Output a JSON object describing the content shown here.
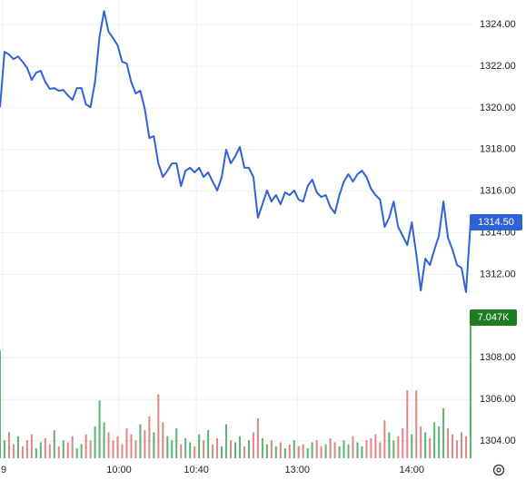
{
  "chart_data": {
    "type": "line",
    "color": "#2f62d9",
    "values": [
      1320.03,
      1322.69,
      1322.56,
      1322.34,
      1322.47,
      1322.21,
      1321.91,
      1321.34,
      1321.69,
      1321.78,
      1321.25,
      1320.91,
      1320.95,
      1320.82,
      1320.86,
      1320.6,
      1320.38,
      1320.95,
      1320.95,
      1320.17,
      1320.03,
      1321.25,
      1323.43,
      1324.65,
      1323.65,
      1323.35,
      1323,
      1322.21,
      1322.13,
      1321.25,
      1320.69,
      1320.82,
      1319.95,
      1318.55,
      1318.64,
      1317.33,
      1316.68,
      1316.98,
      1317.33,
      1317.33,
      1316.24,
      1316.98,
      1317.12,
      1316.9,
      1317.12,
      1316.68,
      1316.9,
      1316.46,
      1316.03,
      1316.68,
      1317.99,
      1317.33,
      1317.68,
      1318.12,
      1317.12,
      1317.12,
      1316.68,
      1314.72,
      1315.37,
      1316.03,
      1315.5,
      1315.81,
      1315.37,
      1315.94,
      1315.81,
      1316.03,
      1315.59,
      1315.5,
      1316.24,
      1316.55,
      1315.94,
      1315.72,
      1315.81,
      1315.24,
      1314.94,
      1315.81,
      1316.46,
      1316.81,
      1316.46,
      1316.81,
      1316.98,
      1316.68,
      1316.11,
      1315.81,
      1315.59,
      1314.28,
      1314.72,
      1315.5,
      1314.28,
      1313.85,
      1313.41,
      1314.5,
      1312.98,
      1311.23,
      1312.76,
      1312.45,
      1313.19,
      1313.85,
      1315.5,
      1313.76,
      1313.19,
      1312.45,
      1312.32,
      1311.15,
      1314.5
    ],
    "last_value_label": "1314.50",
    "xlim": [
      0,
      104
    ],
    "xticks": [
      {
        "value": 0.6,
        "label": "9"
      },
      {
        "value": 26.3,
        "label": "10:00"
      },
      {
        "value": 43.4,
        "label": "10:40"
      },
      {
        "value": 65.7,
        "label": "13:00"
      },
      {
        "value": 91,
        "label": "14:00"
      }
    ],
    "ylim": [
      1303.17,
      1325.18
    ],
    "yticks": [
      {
        "value": 1304,
        "label": "1304.00"
      },
      {
        "value": 1306,
        "label": "1306.00"
      },
      {
        "value": 1308,
        "label": "1308.00"
      },
      {
        "value": 1312,
        "label": "1312.00"
      },
      {
        "value": 1314,
        "label": "1314.00"
      },
      {
        "value": 1316,
        "label": "1316.00"
      },
      {
        "value": 1318,
        "label": "1318.00"
      },
      {
        "value": 1320,
        "label": "1320.00"
      },
      {
        "value": 1322,
        "label": "1322.00"
      },
      {
        "value": 1324,
        "label": "1324.00"
      }
    ],
    "grid": true,
    "volume": {
      "values": [
        5400,
        900,
        1300,
        700,
        1100,
        600,
        900,
        1200,
        500,
        800,
        1000,
        700,
        1400,
        600,
        900,
        800,
        1100,
        500,
        700,
        1200,
        900,
        1600,
        2900,
        1800,
        1300,
        900,
        1100,
        700,
        1500,
        1200,
        900,
        1700,
        1400,
        2100,
        1300,
        3200,
        1800,
        1100,
        900,
        1500,
        700,
        1000,
        800,
        600,
        1200,
        900,
        1400,
        700,
        1000,
        600,
        1700,
        900,
        800,
        1100,
        600,
        900,
        1300,
        2000,
        1000,
        700,
        900,
        600,
        800,
        500,
        700,
        900,
        600,
        700,
        500,
        800,
        900,
        600,
        700,
        1000,
        800,
        600,
        900,
        700,
        1100,
        800,
        600,
        900,
        1000,
        1200,
        800,
        1900,
        1300,
        900,
        1100,
        1500,
        3400,
        1200,
        3400,
        1600,
        1300,
        1000,
        1800,
        1600,
        2500,
        1500,
        1200,
        900,
        1300,
        1100,
        7047
      ],
      "ylim": [
        0,
        11000
      ],
      "up_color": "#5cb270",
      "down_color": "#e08585",
      "label_color": "#1e7d22",
      "last_value_label": "7.047K"
    }
  }
}
